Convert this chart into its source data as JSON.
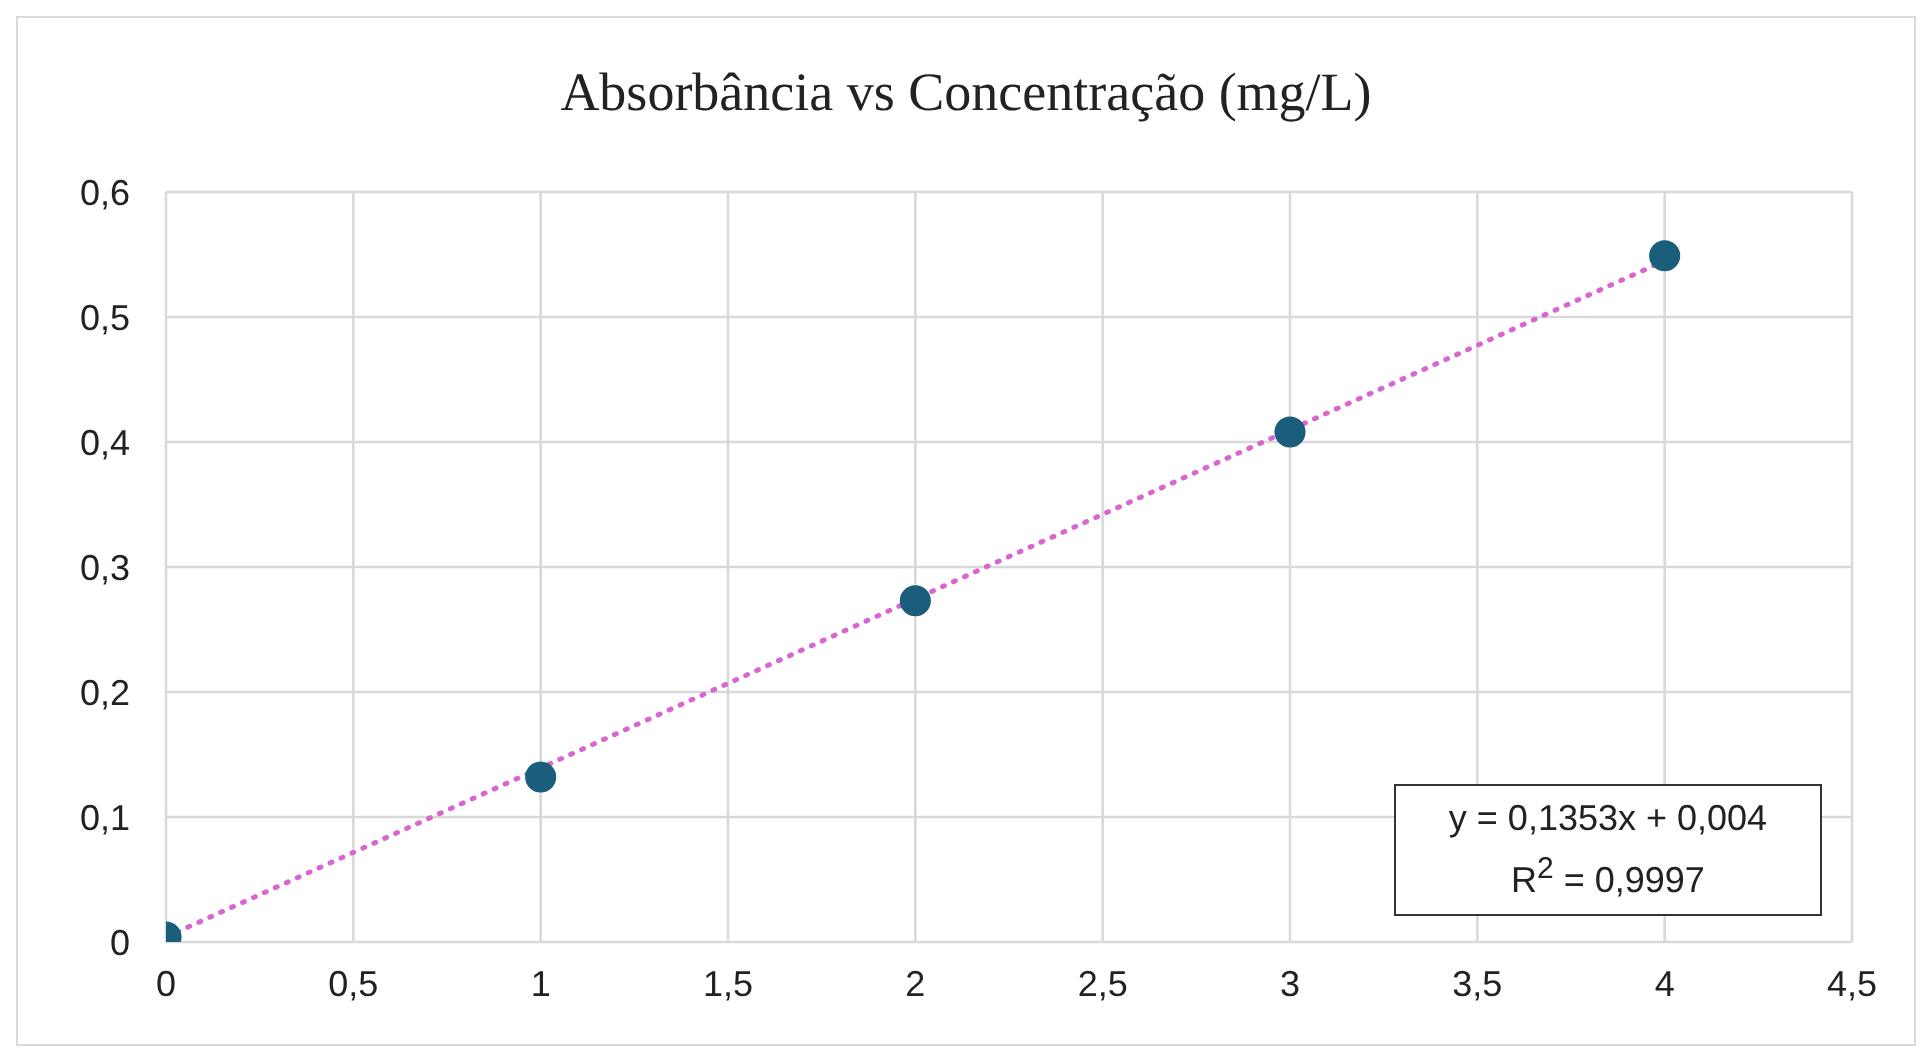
{
  "chart_data": {
    "type": "scatter",
    "title": "Absorbância vs Concentração (mg/L)",
    "x": [
      0,
      1,
      2,
      3,
      4
    ],
    "series": [
      {
        "color": "#1b5e7b",
        "marker": "circle",
        "values": [
          0.004,
          0.132,
          0.273,
          0.408,
          0.549
        ]
      },
      {
        "type": "line",
        "color": "#d966d0",
        "line_style": "dotted",
        "marker": "none",
        "x": [
          0,
          4
        ],
        "values": [
          0.004,
          0.545
        ]
      }
    ],
    "annotations": [
      "y = 0,1353x + 0,004",
      "R$^{2}$ = 0,9997"
    ],
    "xlim": [
      0,
      4.5
    ],
    "xticks": [
      0,
      {
        "value": 0.5,
        "label": "0,5"
      },
      1,
      {
        "value": 1.5,
        "label": "1,5"
      },
      2,
      {
        "value": 2.5,
        "label": "2,5"
      },
      3,
      {
        "value": 3.5,
        "label": "3,5"
      },
      4,
      {
        "value": 4.5,
        "label": "4,5"
      }
    ],
    "ylim": [
      0,
      0.6
    ],
    "yticks": [
      0,
      {
        "value": 0.1,
        "label": "0,1"
      },
      {
        "value": 0.2,
        "label": "0,2"
      },
      {
        "value": 0.3,
        "label": "0,3"
      },
      {
        "value": 0.4,
        "label": "0,4"
      },
      {
        "value": 0.5,
        "label": "0,5"
      },
      {
        "value": 0.6,
        "label": "0,6"
      }
    ],
    "grid": true
  }
}
